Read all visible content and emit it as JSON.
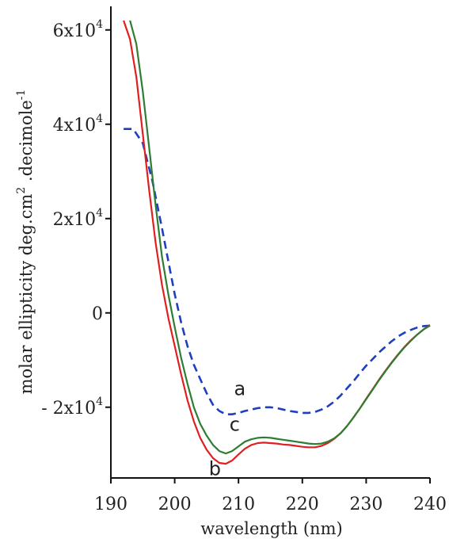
{
  "chart_data": {
    "type": "line",
    "xlabel": "wavelength (nm)",
    "ylabel": "molar ellipticity deg.cm",
    "ylabel_sup1": "2",
    "ylabel_mid": " .decimole",
    "ylabel_sup2": "-1",
    "xlim": [
      190,
      240
    ],
    "ylim": [
      -35000,
      65000
    ],
    "x_ticks": [
      190,
      200,
      210,
      220,
      230,
      240
    ],
    "x_tick_labels": [
      "190",
      "200",
      "210",
      "220",
      "230",
      "240"
    ],
    "y_ticks": [
      {
        "value": 60000,
        "base": "6x10",
        "exp": "4",
        "prefix": ""
      },
      {
        "value": 40000,
        "base": "4x10",
        "exp": "4",
        "prefix": ""
      },
      {
        "value": 20000,
        "base": "2x10",
        "exp": "4",
        "prefix": ""
      },
      {
        "value": 0,
        "base": "0",
        "exp": "",
        "prefix": ""
      },
      {
        "value": -20000,
        "base": "2x10",
        "exp": "4",
        "prefix": "- "
      }
    ],
    "grid": false,
    "series": [
      {
        "name": "a",
        "color": "#1f3fbf",
        "dashed": true,
        "x": [
          192,
          193.5,
          195,
          196.5,
          198,
          199,
          200,
          201,
          202,
          203,
          204,
          205,
          206,
          207,
          208,
          209,
          210,
          211,
          212,
          213,
          214,
          215,
          216,
          217,
          218,
          219,
          220,
          221,
          222,
          223,
          224,
          225,
          226,
          227,
          228,
          229,
          230,
          231,
          232,
          233,
          234,
          235,
          236,
          237,
          238,
          239,
          240
        ],
        "y": [
          39000,
          39000,
          36000,
          28000,
          18000,
          11000,
          4000,
          -2000,
          -7000,
          -11000,
          -14000,
          -17000,
          -19500,
          -20800,
          -21500,
          -21500,
          -21200,
          -20800,
          -20500,
          -20200,
          -20000,
          -20000,
          -20200,
          -20500,
          -20800,
          -21000,
          -21200,
          -21200,
          -21000,
          -20500,
          -19800,
          -18800,
          -17500,
          -16000,
          -14500,
          -12800,
          -11200,
          -9800,
          -8400,
          -7200,
          -6000,
          -5000,
          -4200,
          -3600,
          -3100,
          -2800,
          -2700
        ]
      },
      {
        "name": "b",
        "color": "#e02020",
        "dashed": false,
        "x": [
          192,
          193,
          194,
          195,
          196,
          197,
          198,
          199,
          200,
          201,
          202,
          203,
          204,
          205,
          206,
          207,
          208,
          209,
          210,
          211,
          212,
          213,
          214,
          215,
          216,
          217,
          218,
          219,
          220,
          221,
          222,
          223,
          224,
          225,
          226,
          227,
          228,
          229,
          230,
          231,
          232,
          233,
          234,
          235,
          236,
          237,
          238,
          239,
          240
        ],
        "y": [
          62000,
          58000,
          50000,
          38000,
          26000,
          15000,
          6000,
          -1000,
          -7000,
          -13000,
          -18500,
          -23000,
          -26500,
          -29000,
          -30800,
          -31800,
          -32000,
          -31300,
          -30000,
          -28800,
          -28000,
          -27600,
          -27500,
          -27600,
          -27700,
          -27900,
          -28000,
          -28200,
          -28400,
          -28500,
          -28500,
          -28200,
          -27600,
          -26700,
          -25500,
          -24000,
          -22200,
          -20300,
          -18200,
          -16200,
          -14200,
          -12300,
          -10500,
          -8800,
          -7200,
          -5800,
          -4600,
          -3500,
          -2600
        ]
      },
      {
        "name": "c",
        "color": "#2e7d32",
        "dashed": false,
        "x": [
          193,
          194,
          195,
          196,
          197,
          198,
          199,
          200,
          201,
          202,
          203,
          204,
          205,
          206,
          207,
          208,
          209,
          210,
          211,
          212,
          213,
          214,
          215,
          216,
          217,
          218,
          219,
          220,
          221,
          222,
          223,
          224,
          225,
          226,
          227,
          228,
          229,
          230,
          231,
          232,
          233,
          234,
          235,
          236,
          237,
          238,
          239,
          240
        ],
        "y": [
          62000,
          57000,
          47000,
          35000,
          23000,
          12000,
          4000,
          -3000,
          -9500,
          -15000,
          -20000,
          -23500,
          -26000,
          -28000,
          -29300,
          -29800,
          -29300,
          -28300,
          -27300,
          -26800,
          -26500,
          -26400,
          -26500,
          -26700,
          -26900,
          -27100,
          -27300,
          -27500,
          -27700,
          -27800,
          -27700,
          -27300,
          -26600,
          -25500,
          -24000,
          -22200,
          -20300,
          -18300,
          -16300,
          -14300,
          -12400,
          -10600,
          -8900,
          -7300,
          -5900,
          -4600,
          -3500,
          -2700
        ]
      }
    ],
    "annotations": [
      {
        "text": "a",
        "x": 210.2,
        "y": -17400
      },
      {
        "text": "c",
        "x": 209.4,
        "y": -25000
      },
      {
        "text": "b",
        "x": 206.3,
        "y": -34400
      }
    ]
  }
}
